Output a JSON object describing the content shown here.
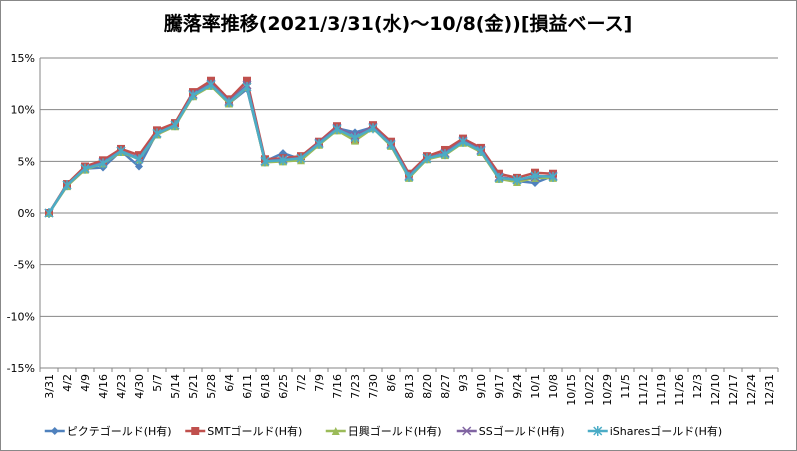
{
  "chart_data": {
    "type": "line",
    "title": "騰落率推移(2021/3/31(水)～10/8(金))[損益ベース]",
    "categories": [
      "3/31",
      "4/2",
      "4/9",
      "4/16",
      "4/23",
      "4/30",
      "5/7",
      "5/14",
      "5/21",
      "5/28",
      "6/4",
      "6/11",
      "6/18",
      "6/25",
      "7/2",
      "7/9",
      "7/16",
      "7/23",
      "7/30",
      "8/6",
      "8/13",
      "8/20",
      "8/27",
      "9/3",
      "9/10",
      "9/17",
      "9/24",
      "10/1",
      "10/8",
      "10/15",
      "10/22",
      "10/29",
      "11/5",
      "11/12",
      "11/19",
      "11/26",
      "12/3",
      "12/10",
      "12/17",
      "12/24",
      "12/31"
    ],
    "series": [
      {
        "name": "ピクテゴールド(H有)",
        "color": "#4F81BD",
        "marker": "diamond",
        "values": [
          0,
          2.7,
          4.3,
          4.4,
          6.0,
          4.5,
          7.8,
          8.5,
          11.5,
          12.5,
          10.6,
          12.0,
          5.0,
          5.8,
          5.2,
          6.8,
          8.2,
          7.8,
          8.3,
          6.7,
          3.5,
          5.3,
          5.8,
          6.9,
          6.0,
          3.5,
          3.1,
          2.9,
          3.6,
          null,
          null,
          null,
          null,
          null,
          null,
          null,
          null,
          null,
          null,
          null,
          null
        ]
      },
      {
        "name": "SMTゴールド(H有)",
        "color": "#C0504D",
        "marker": "square",
        "values": [
          0,
          2.8,
          4.5,
          5.1,
          6.2,
          5.6,
          8.0,
          8.7,
          11.7,
          12.8,
          11.0,
          12.8,
          5.2,
          5.3,
          5.5,
          6.9,
          8.4,
          7.1,
          8.5,
          6.9,
          3.8,
          5.5,
          6.1,
          7.2,
          6.3,
          3.8,
          3.4,
          3.9,
          3.8,
          null,
          null,
          null,
          null,
          null,
          null,
          null,
          null,
          null,
          null,
          null,
          null
        ]
      },
      {
        "name": "日興ゴールド(H有)",
        "color": "#9BBB59",
        "marker": "triangle",
        "values": [
          0,
          2.6,
          4.2,
          4.8,
          5.9,
          5.2,
          7.6,
          8.4,
          11.3,
          12.3,
          10.6,
          12.2,
          4.9,
          5.0,
          5.1,
          6.6,
          8.0,
          7.0,
          8.2,
          6.5,
          3.4,
          5.2,
          5.6,
          6.8,
          5.9,
          3.3,
          3.0,
          3.4,
          3.4,
          null,
          null,
          null,
          null,
          null,
          null,
          null,
          null,
          null,
          null,
          null,
          null
        ]
      },
      {
        "name": "SSゴールド(H有)",
        "color": "#8064A2",
        "marker": "x",
        "values": [
          0,
          2.7,
          4.3,
          4.9,
          6.0,
          5.3,
          7.7,
          8.5,
          11.5,
          12.5,
          10.8,
          12.4,
          5.0,
          5.2,
          5.3,
          6.8,
          8.2,
          7.5,
          8.3,
          6.7,
          3.6,
          5.3,
          5.8,
          7.0,
          6.1,
          3.5,
          3.2,
          3.5,
          3.6,
          null,
          null,
          null,
          null,
          null,
          null,
          null,
          null,
          null,
          null,
          null,
          null
        ]
      },
      {
        "name": "iSharesゴールド(H有)",
        "color": "#4BACC6",
        "marker": "asterisk",
        "values": [
          0,
          2.7,
          4.3,
          4.8,
          6.0,
          5.2,
          7.7,
          8.5,
          11.4,
          12.4,
          10.7,
          12.2,
          5.0,
          5.1,
          5.3,
          6.7,
          8.1,
          7.3,
          8.2,
          6.6,
          3.5,
          5.3,
          5.7,
          6.9,
          6.0,
          3.4,
          3.2,
          3.6,
          3.5,
          null,
          null,
          null,
          null,
          null,
          null,
          null,
          null,
          null,
          null,
          null,
          null
        ]
      }
    ],
    "ylim": [
      -15,
      15
    ],
    "yticks": [
      {
        "value": -15,
        "label": "-15%"
      },
      {
        "value": -10,
        "label": "-10%"
      },
      {
        "value": -5,
        "label": "-5%"
      },
      {
        "value": 0,
        "label": "0%"
      },
      {
        "value": 5,
        "label": "5%"
      },
      {
        "value": 10,
        "label": "10%"
      },
      {
        "value": 15,
        "label": "15%"
      }
    ],
    "grid": true,
    "legend": "bottom"
  }
}
